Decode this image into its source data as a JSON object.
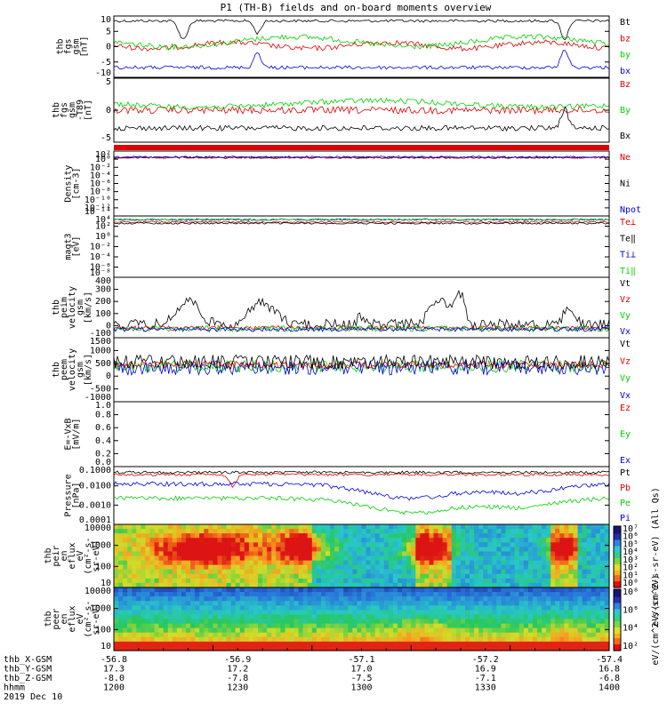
{
  "title": "P1 (TH-B) fields and on-board moments overview",
  "colors": {
    "black": "#000000",
    "red": "#e00000",
    "green": "#00d000",
    "blue": "#0000e0"
  },
  "panels": [
    {
      "ylabel": [
        "thb",
        "fgs",
        "gsm",
        "[nT]"
      ],
      "ticks": [
        "10",
        "5",
        "0",
        "-5",
        "-10"
      ],
      "legend": [
        {
          "text": "Bt",
          "color": "#000000"
        },
        {
          "text": "bz",
          "color": "#e00000"
        },
        {
          "text": "by",
          "color": "#00d000"
        },
        {
          "text": "bx",
          "color": "#0000e0"
        }
      ]
    },
    {
      "ylabel": [
        "thb",
        "fgs",
        "gsm",
        "-T89",
        "[nT]"
      ],
      "ticks": [
        "5",
        "0",
        "-5"
      ],
      "legend": [
        {
          "text": "Bz",
          "color": "#e00000"
        },
        {
          "text": "By",
          "color": "#00d000"
        },
        {
          "text": "Bx",
          "color": "#000000"
        }
      ]
    },
    {
      "ylabel": [
        "Density",
        "[cm-3]"
      ],
      "ticks": [
        "10²",
        "10⁰",
        "10⁻²",
        "10⁻⁴",
        "10⁻⁶",
        "10⁻⁸",
        "10⁻¹⁰",
        "10⁻¹²",
        "10⁻¹⁴"
      ],
      "legend": [
        {
          "text": "Ne",
          "color": "#e00000"
        },
        {
          "text": "Ni",
          "color": "#000000"
        },
        {
          "text": "Npot",
          "color": "#0000e0"
        }
      ]
    },
    {
      "ylabel": [
        "magt3",
        "[eV]"
      ],
      "ticks": [
        "10⁴",
        "10²",
        "10⁰",
        "10⁻²",
        "10⁻⁴",
        "10⁻⁶",
        "10⁻⁸"
      ],
      "legend": [
        {
          "text": "Te⊥",
          "color": "#e00000"
        },
        {
          "text": "Te‖",
          "color": "#000000"
        },
        {
          "text": "Ti⊥",
          "color": "#0000e0"
        },
        {
          "text": "Ti‖",
          "color": "#00d000"
        }
      ]
    },
    {
      "ylabel": [
        "thb",
        "peim",
        "velocity",
        "gsm",
        "[km/s]"
      ],
      "ticks": [
        "400",
        "300",
        "200",
        "100",
        "0",
        "-100"
      ],
      "legend": [
        {
          "text": "Vt",
          "color": "#000000"
        },
        {
          "text": "Vz",
          "color": "#e00000"
        },
        {
          "text": "Vy",
          "color": "#00d000"
        },
        {
          "text": "Vx",
          "color": "#0000e0"
        }
      ]
    },
    {
      "ylabel": [
        "thb",
        "peem",
        "velocity",
        "gsm",
        "[km/s]"
      ],
      "ticks": [
        "1500",
        "1000",
        "500",
        "0",
        "-500",
        "-1000"
      ],
      "legend": [
        {
          "text": "Vt",
          "color": "#000000"
        },
        {
          "text": "Vz",
          "color": "#e00000"
        },
        {
          "text": "Vy",
          "color": "#00d000"
        },
        {
          "text": "Vx",
          "color": "#0000e0"
        }
      ]
    },
    {
      "ylabel": [
        "E=-VxB",
        "[mV/m]"
      ],
      "ticks": [
        "1.0",
        "0.8",
        "0.6",
        "0.4",
        "0.2",
        "0.0"
      ],
      "legend": [
        {
          "text": "Ez",
          "color": "#e00000"
        },
        {
          "text": "Ey",
          "color": "#00d000"
        },
        {
          "text": "Ex",
          "color": "#0000e0"
        }
      ]
    },
    {
      "ylabel": [
        "Pressure",
        "[nPa]"
      ],
      "ticks": [
        "0.1000",
        "0.0100",
        "0.0010",
        "0.0001"
      ],
      "legend": [
        {
          "text": "Pt",
          "color": "#000000"
        },
        {
          "text": "Pb",
          "color": "#e00000"
        },
        {
          "text": "Pe",
          "color": "#00d000"
        },
        {
          "text": "Pi",
          "color": "#0000e0"
        }
      ]
    },
    {
      "ylabel": [
        "thb",
        "peir",
        "en",
        "eflux",
        "eV",
        "(cm²-s-",
        "sr-eV)"
      ],
      "ticks": [
        "10000",
        "1000",
        "100",
        "10"
      ],
      "legend": []
    },
    {
      "ylabel": [
        "thb",
        "peer",
        "en",
        "eflux",
        "eV",
        "(cm²-s-",
        "sr-eV)"
      ],
      "ticks": [
        "10000",
        "1000",
        "100",
        "10"
      ],
      "legend": []
    }
  ],
  "colorbar1": {
    "ticks": [
      "10⁷",
      "10⁶",
      "10⁵",
      "10⁴",
      "10³",
      "10²",
      "10¹",
      "10⁰"
    ],
    "label": "eV/(cm^2-s-sr-eV) (All Qs)"
  },
  "colorbar2": {
    "ticks": [
      "10⁸",
      "10⁶",
      "10⁴",
      "10²"
    ],
    "label": "eV/(cm^2-s-sr-eV)"
  },
  "xaxis": {
    "row_labels": [
      "thb_X-GSM",
      "thb_Y-GSM",
      "thb_Z-GSM",
      "hhmm",
      "2019 Dec 10"
    ],
    "columns": [
      [
        "-56.8",
        "17.3",
        "-8.0",
        "1200"
      ],
      [
        "-56.9",
        "17.2",
        "-7.8",
        "1230"
      ],
      [
        "-57.1",
        "17.0",
        "-7.5",
        "1300"
      ],
      [
        "-57.2",
        "16.9",
        "-7.1",
        "1330"
      ],
      [
        "-57.4",
        "16.8",
        "-6.8",
        "1400"
      ]
    ]
  },
  "chart_data": {
    "type": "line",
    "title": "P1 (TH-B) fields and on-board moments overview",
    "x": [
      "1200",
      "1230",
      "1300",
      "1330",
      "1400"
    ],
    "xlabel": "hhmm",
    "date": "2019 Dec 10",
    "panels": [
      {
        "ylabel": "thb fgs gsm [nT]",
        "ylim": [
          -10,
          10
        ],
        "series": [
          {
            "name": "Bt",
            "values": [
              8,
              8,
              8.5,
              8.5,
              9
            ]
          },
          {
            "name": "bz",
            "values": [
              0,
              0,
              -1,
              -1,
              -1
            ]
          },
          {
            "name": "by",
            "values": [
              3,
              2,
              1,
              2,
              1
            ]
          },
          {
            "name": "bx",
            "values": [
              -7,
              -6,
              -6,
              -6,
              -6
            ]
          }
        ]
      },
      {
        "ylabel": "thb fgs gsm -T89 [nT]",
        "ylim": [
          -6,
          6
        ],
        "series": [
          {
            "name": "Bz",
            "values": [
              0,
              0,
              0,
              0,
              0
            ]
          },
          {
            "name": "By",
            "values": [
              1,
              2,
              2,
              2,
              2
            ]
          },
          {
            "name": "Bx",
            "values": [
              -4,
              -3,
              -4,
              -4,
              -3
            ]
          }
        ]
      },
      {
        "ylabel": "Density [cm-3]",
        "scale": "log",
        "ylim": [
          1e-14,
          100
        ],
        "series": [
          {
            "name": "Ne",
            "values": [
              1,
              1,
              1,
              1,
              1
            ]
          },
          {
            "name": "Ni",
            "values": [
              1,
              1,
              1,
              1,
              1
            ]
          },
          {
            "name": "Npot",
            "values": [
              1,
              1,
              1,
              1,
              1
            ]
          }
        ]
      },
      {
        "ylabel": "magt3 [eV]",
        "scale": "log",
        "ylim": [
          1e-08,
          10000
        ],
        "series": [
          {
            "name": "Te⊥",
            "values": [
              300,
              300,
              300,
              300,
              300
            ]
          },
          {
            "name": "Te‖",
            "values": [
              300,
              300,
              300,
              300,
              300
            ]
          },
          {
            "name": "Ti⊥",
            "values": [
              2000,
              2000,
              2000,
              2000,
              2000
            ]
          },
          {
            "name": "Ti‖",
            "values": [
              2000,
              2000,
              2000,
              2000,
              2000
            ]
          }
        ]
      },
      {
        "ylabel": "thb peim velocity gsm [km/s]",
        "ylim": [
          -100,
          400
        ],
        "series": [
          {
            "name": "Vt",
            "values": [
              50,
              200,
              30,
              100,
              40
            ]
          },
          {
            "name": "Vz",
            "values": [
              0,
              0,
              0,
              0,
              0
            ]
          },
          {
            "name": "Vy",
            "values": [
              0,
              0,
              0,
              0,
              0
            ]
          },
          {
            "name": "Vx",
            "values": [
              0,
              0,
              0,
              0,
              0
            ]
          }
        ]
      },
      {
        "ylabel": "thb peem velocity gsm [km/s]",
        "ylim": [
          -1200,
          1500
        ],
        "series": [
          {
            "name": "Vt",
            "values": [
              300,
              300,
              300,
              300,
              300
            ]
          },
          {
            "name": "Vz",
            "values": [
              0,
              0,
              0,
              0,
              0
            ]
          },
          {
            "name": "Vy",
            "values": [
              0,
              0,
              0,
              0,
              0
            ]
          },
          {
            "name": "Vx",
            "values": [
              0,
              0,
              0,
              0,
              0
            ]
          }
        ]
      },
      {
        "ylabel": "E=-VxB [mV/m]",
        "ylim": [
          0,
          1
        ],
        "series": []
      },
      {
        "ylabel": "Pressure [nPa]",
        "scale": "log",
        "ylim": [
          0.0001,
          0.1
        ],
        "series": [
          {
            "name": "Pt",
            "values": [
              0.04,
              0.04,
              0.04,
              0.04,
              0.04
            ]
          },
          {
            "name": "Pb",
            "values": [
              0.035,
              0.035,
              0.035,
              0.035,
              0.035
            ]
          },
          {
            "name": "Pe",
            "values": [
              0.002,
              0.002,
              0.0008,
              0.001,
              0.0008
            ]
          },
          {
            "name": "Pi",
            "values": [
              0.006,
              0.006,
              0.0015,
              0.002,
              0.002
            ]
          }
        ]
      },
      {
        "ylabel": "thb peir en eflux eV/(cm²-s-sr-eV)",
        "type": "heatmap",
        "scale": "log",
        "ylim": [
          5,
          30000
        ]
      },
      {
        "ylabel": "thb peer en eflux eV/(cm²-s-sr-eV)",
        "type": "heatmap",
        "scale": "log",
        "ylim": [
          5,
          30000
        ]
      }
    ]
  }
}
